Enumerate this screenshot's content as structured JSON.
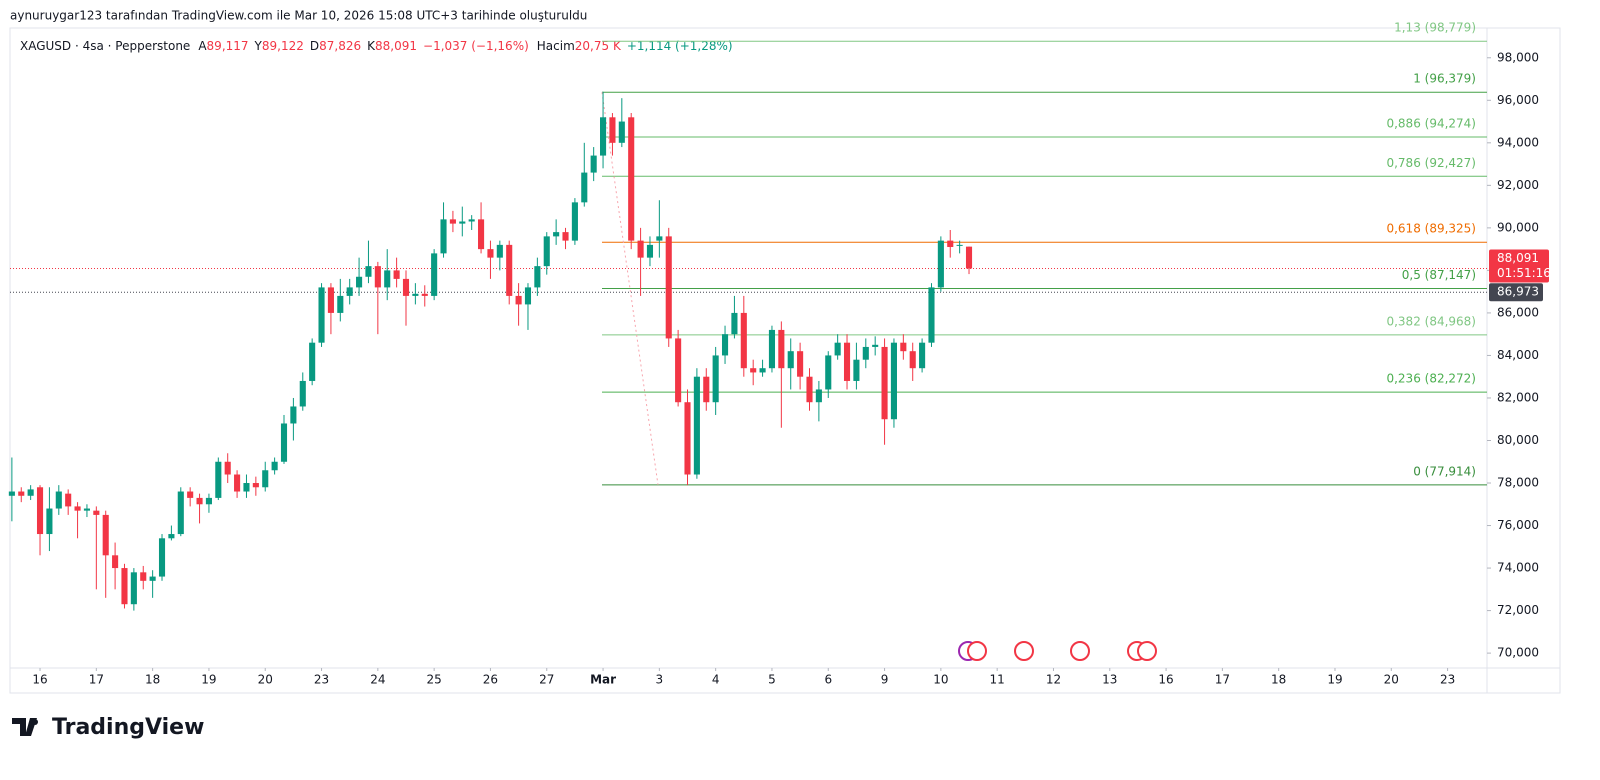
{
  "chart_data": {
    "type": "candlestick",
    "caption": "aynuruygar123 tarafından TradingView.com ile Mar 10, 2026 15:08 UTC+3 tarihinde oluşturuldu",
    "legend": {
      "symbol": "XAGUSD · 4sa · Pepperstone",
      "ohlc": [
        {
          "key": "A",
          "value": "89,117"
        },
        {
          "key": "Y",
          "value": "89,122"
        },
        {
          "key": "D",
          "value": "87,826"
        },
        {
          "key": "K",
          "value": "88,091"
        }
      ],
      "change": "−1,037 (−1,16%)",
      "volume_label": "Hacim",
      "volume": "20,75 K",
      "volume_change": "+1,114 (+1,28%)"
    },
    "up_color": "#089981",
    "down_color": "#f23645",
    "open": [
      77400,
      77600,
      77400,
      77800,
      75600,
      76800,
      77500,
      76900,
      76700,
      76700,
      76500,
      74600,
      74000,
      72300,
      73800,
      73400,
      73600,
      75400,
      75600,
      77600,
      77300,
      77000,
      77300,
      79000,
      78400,
      77600,
      78000,
      77800,
      78600,
      79000,
      80800,
      81600,
      82800,
      84600,
      87200,
      86000,
      86800,
      87200,
      87700,
      88200,
      87200,
      88000,
      87600,
      86800,
      86900,
      86800,
      88800,
      90400,
      90200,
      90300,
      90400,
      89000,
      88600,
      89200,
      86800,
      86400,
      87200,
      88200,
      89600,
      89800,
      89400,
      91200,
      92600,
      93400,
      95200,
      94000,
      95200,
      89400,
      88600,
      89400,
      89600,
      84800,
      81800,
      78400,
      83000,
      81800,
      84000,
      85000,
      86000,
      83400,
      83200,
      83400,
      85200,
      83400,
      84200,
      83000,
      81800,
      82400,
      84000,
      84600,
      82800,
      83800,
      84400,
      84400,
      81000,
      84600,
      84200,
      83400,
      84600,
      87200,
      89400,
      89200,
      89117
    ],
    "high": [
      79200,
      77800,
      77900,
      77900,
      77800,
      77900,
      77700,
      77100,
      77000,
      76900,
      76700,
      75200,
      74200,
      74000,
      74100,
      73900,
      75600,
      76000,
      77800,
      77800,
      77500,
      77500,
      79200,
      79400,
      78600,
      78400,
      78300,
      79000,
      79200,
      81200,
      82000,
      83200,
      84800,
      87400,
      87400,
      87600,
      87600,
      88600,
      89400,
      88400,
      89000,
      88600,
      88000,
      87400,
      87300,
      89000,
      91200,
      90800,
      91000,
      90600,
      91200,
      89400,
      89400,
      89400,
      87400,
      87400,
      88600,
      89800,
      90400,
      90000,
      91400,
      94000,
      93800,
      96400,
      95400,
      96100,
      95400,
      90000,
      89600,
      91300,
      90000,
      85200,
      82400,
      83400,
      83400,
      84400,
      85400,
      86800,
      86800,
      83800,
      83800,
      85400,
      85600,
      84800,
      84600,
      83400,
      82800,
      84200,
      85000,
      85000,
      84600,
      84800,
      84900,
      84800,
      84800,
      85000,
      84600,
      84800,
      87400,
      89600,
      89900,
      89400,
      89122
    ],
    "low": [
      76200,
      77100,
      77200,
      74600,
      74800,
      76500,
      76500,
      75400,
      76400,
      73000,
      72600,
      73000,
      72100,
      72000,
      73000,
      72600,
      73400,
      75300,
      75500,
      76900,
      76100,
      76600,
      77200,
      78000,
      77300,
      77300,
      77400,
      77600,
      78400,
      78900,
      80000,
      81400,
      82600,
      84400,
      85000,
      85600,
      86400,
      86800,
      87400,
      85000,
      86600,
      87200,
      85400,
      86400,
      86300,
      86600,
      88600,
      89800,
      89600,
      89900,
      88800,
      87600,
      88000,
      86400,
      85400,
      85200,
      86800,
      87800,
      89200,
      89000,
      89200,
      91000,
      92200,
      92800,
      93400,
      93800,
      89000,
      86800,
      88200,
      88600,
      84400,
      81600,
      77900,
      78200,
      81400,
      81200,
      83600,
      84800,
      83000,
      82600,
      83000,
      83200,
      80600,
      82400,
      82400,
      81400,
      80900,
      82000,
      83800,
      82400,
      82400,
      83400,
      84000,
      79800,
      80600,
      83800,
      82800,
      83200,
      84400,
      87000,
      88600,
      88800,
      87826
    ],
    "close": [
      77600,
      77400,
      77700,
      75600,
      76800,
      77600,
      76900,
      76700,
      76800,
      76500,
      74600,
      74000,
      72300,
      73800,
      73400,
      73600,
      75400,
      75600,
      77600,
      77300,
      77000,
      77300,
      79000,
      78400,
      77600,
      78000,
      77800,
      78600,
      79000,
      80800,
      81600,
      82800,
      84600,
      87200,
      86000,
      86800,
      87200,
      87700,
      88200,
      87200,
      88000,
      87600,
      86800,
      86900,
      86800,
      88800,
      90400,
      90200,
      90300,
      90400,
      89000,
      88600,
      89200,
      86800,
      86400,
      87200,
      88200,
      89600,
      89800,
      89400,
      91200,
      92600,
      93400,
      95200,
      94000,
      95000,
      89400,
      88600,
      89200,
      89600,
      84800,
      81800,
      78400,
      83000,
      81800,
      84000,
      85000,
      86000,
      83400,
      83200,
      83400,
      85200,
      83400,
      84200,
      83000,
      81800,
      82400,
      84000,
      84600,
      82800,
      83800,
      84400,
      84500,
      81000,
      84600,
      84200,
      83400,
      84600,
      87200,
      89400,
      89100,
      89200,
      88091
    ],
    "xlim": [
      -0.2,
      157.2
    ],
    "xticks": [
      {
        "value": 3,
        "label": "16"
      },
      {
        "value": 9,
        "label": "17"
      },
      {
        "value": 15,
        "label": "18"
      },
      {
        "value": 21,
        "label": "19"
      },
      {
        "value": 27,
        "label": "20"
      },
      {
        "value": 33,
        "label": "23"
      },
      {
        "value": 39,
        "label": "24"
      },
      {
        "value": 45,
        "label": "25"
      },
      {
        "value": 51,
        "label": "26"
      },
      {
        "value": 57,
        "label": "27"
      },
      {
        "value": 63,
        "label": "Mar"
      },
      {
        "value": 69,
        "label": "3"
      },
      {
        "value": 75,
        "label": "4"
      },
      {
        "value": 81,
        "label": "5"
      },
      {
        "value": 87,
        "label": "6"
      },
      {
        "value": 93,
        "label": "9"
      },
      {
        "value": 99,
        "label": "10"
      },
      {
        "value": 105,
        "label": "11"
      },
      {
        "value": 111,
        "label": "12"
      },
      {
        "value": 117,
        "label": "13"
      },
      {
        "value": 123,
        "label": "16"
      },
      {
        "value": 129,
        "label": "17"
      },
      {
        "value": 135,
        "label": "18"
      },
      {
        "value": 141,
        "label": "19"
      },
      {
        "value": 147,
        "label": "20"
      },
      {
        "value": 153,
        "label": "23"
      }
    ],
    "ylim": [
      69300,
      99400
    ],
    "yticks": [
      {
        "value": 70000,
        "label": "70,000"
      },
      {
        "value": 72000,
        "label": "72,000"
      },
      {
        "value": 74000,
        "label": "74,000"
      },
      {
        "value": 76000,
        "label": "76,000"
      },
      {
        "value": 78000,
        "label": "78,000"
      },
      {
        "value": 80000,
        "label": "80,000"
      },
      {
        "value": 82000,
        "label": "82,000"
      },
      {
        "value": 84000,
        "label": "84,000"
      },
      {
        "value": 86000,
        "label": "86,000"
      },
      {
        "value": 88000,
        "label": "88,000"
      },
      {
        "value": 90000,
        "label": "90,000"
      },
      {
        "value": 92000,
        "label": "92,000"
      },
      {
        "value": 94000,
        "label": "94,000"
      },
      {
        "value": 96000,
        "label": "96,000"
      },
      {
        "value": 98000,
        "label": "98,000"
      }
    ],
    "fib_levels": [
      {
        "label": "1,13 (98,779)",
        "value": 98779,
        "color": "#81c784"
      },
      {
        "label": "1 (96,379)",
        "value": 96379,
        "color": "#43a047"
      },
      {
        "label": "0,886 (94,274)",
        "value": 94274,
        "color": "#66bb6a"
      },
      {
        "label": "0,786 (92,427)",
        "value": 92427,
        "color": "#66bb6a"
      },
      {
        "label": "0,618 (89,325)",
        "value": 89325,
        "color": "#ef6c00"
      },
      {
        "label": "0,5 (87,147)",
        "value": 87147,
        "color": "#43a047"
      },
      {
        "label": "0,382 (84,968)",
        "value": 84968,
        "color": "#81c784"
      },
      {
        "label": "0,236 (82,272)",
        "value": 82272,
        "color": "#4caf50"
      },
      {
        "label": "0 (77,914)",
        "value": 77914,
        "color": "#388e3c"
      }
    ],
    "last_price": {
      "value": 88091,
      "label": "88,091",
      "countdown": "01:51:16",
      "color": "#f23645"
    },
    "ref_price": {
      "value": 86973,
      "label": "86,973",
      "color": "#434651"
    },
    "brand": "TradingView"
  }
}
